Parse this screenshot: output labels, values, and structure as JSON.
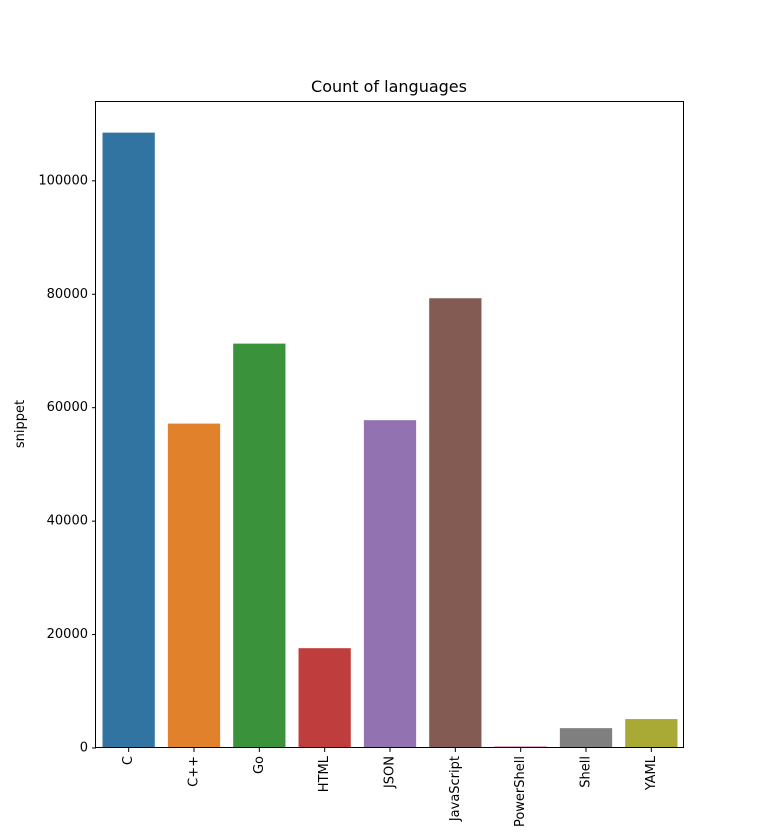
{
  "chart_data": {
    "type": "bar",
    "title": "Count of languages",
    "xlabel": "",
    "ylabel": "snippet",
    "categories": [
      "C",
      "C++",
      "Go",
      "HTML",
      "JSON",
      "JavaScript",
      "PowerShell",
      "Shell",
      "YAML"
    ],
    "values": [
      108500,
      57200,
      71300,
      17600,
      57800,
      79300,
      300,
      3500,
      5100
    ],
    "colors": [
      "#3274a1",
      "#e1812c",
      "#3a923a",
      "#c03d3e",
      "#9372b2",
      "#845b53",
      "#d684bd",
      "#7f7f7f",
      "#a9aa35"
    ],
    "ylim": [
      0,
      113900
    ],
    "yticks": [
      0,
      20000,
      40000,
      60000,
      80000,
      100000
    ],
    "grid": false,
    "legend": "none"
  }
}
